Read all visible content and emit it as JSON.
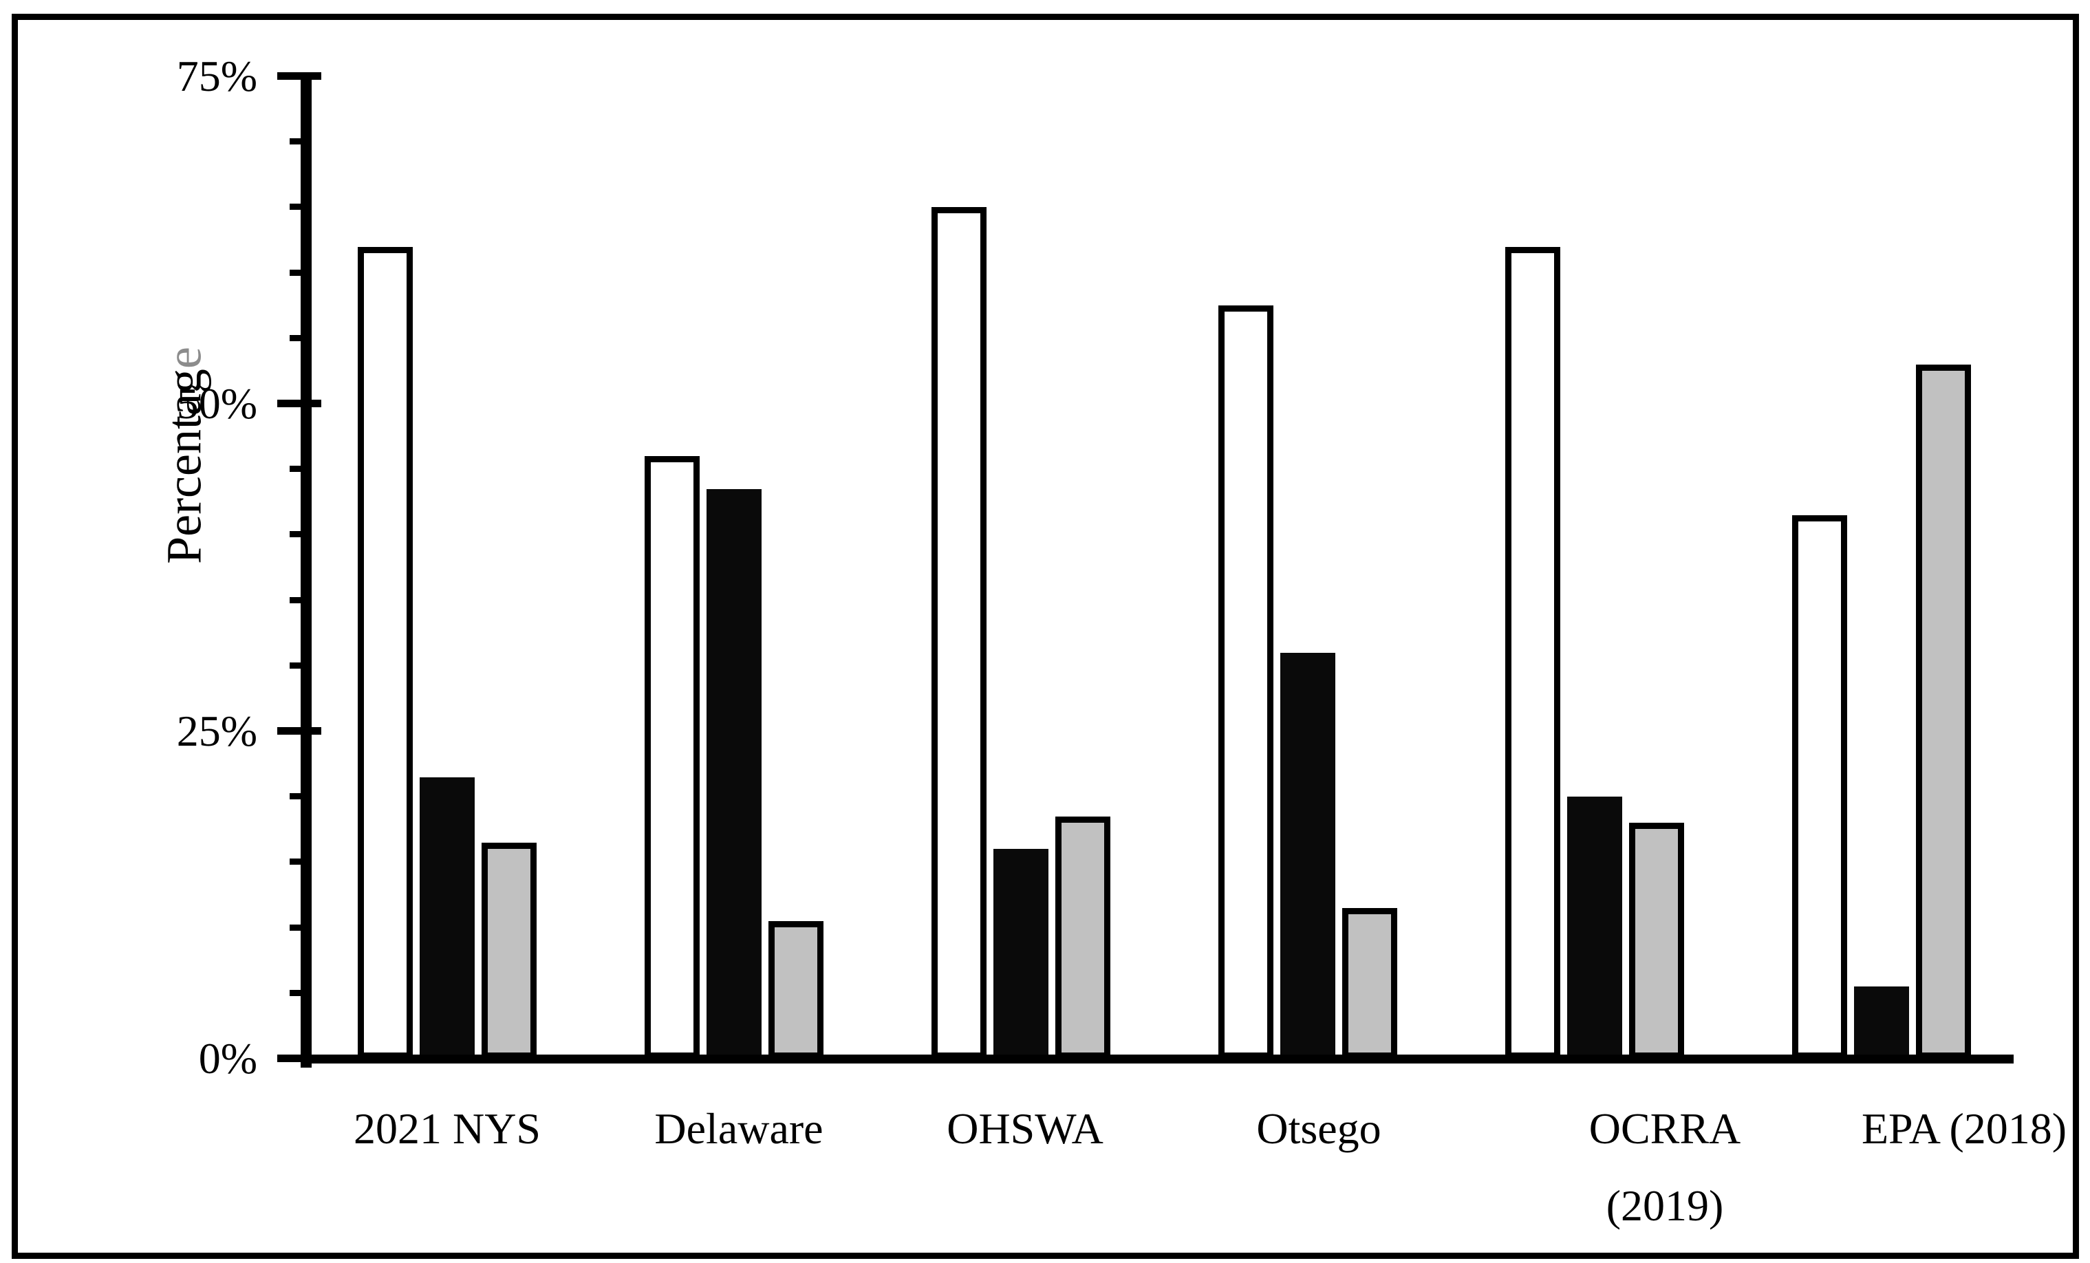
{
  "figure": {
    "background_color": "#ffffff",
    "frame_color": "#000000",
    "text_color": "#000000"
  },
  "chart_data": {
    "type": "bar",
    "title": "",
    "xlabel": "",
    "ylabel": "Percentage",
    "ylabel_main": "Percentag",
    "ylabel_tail": "e",
    "ylabel_tail_color": "#8c8c8c",
    "ylim": [
      0,
      75
    ],
    "y_major_ticks": [
      {
        "value": 0,
        "label": "0%"
      },
      {
        "value": 25,
        "label": "25%"
      },
      {
        "value": 50,
        "label": "50%"
      },
      {
        "value": 75,
        "label": "75%"
      }
    ],
    "y_minor_tick_step": 5,
    "grid": false,
    "legend": "none",
    "categories": [
      {
        "lines": [
          "2021 NYS"
        ]
      },
      {
        "lines": [
          "Delaware"
        ]
      },
      {
        "lines": [
          "OHSWA"
        ]
      },
      {
        "lines": [
          "Otsego"
        ]
      },
      {
        "lines": [
          "OCRRA",
          "(2019)"
        ]
      },
      {
        "lines": [
          "EPA (2018)"
        ]
      }
    ],
    "series": [
      {
        "name": "white-bars",
        "fill": "#ffffff",
        "outline": "#000000",
        "values": [
          62,
          46,
          65,
          57.5,
          62,
          41.5
        ]
      },
      {
        "name": "black-bars",
        "fill": "#0a0a0a",
        "outline": "#000000",
        "values": [
          21.5,
          43.5,
          16,
          31,
          20,
          5.5
        ]
      },
      {
        "name": "gray-bars",
        "fill": "#c1c1c1",
        "outline": "#000000",
        "values": [
          16.5,
          10.5,
          18.5,
          11.5,
          18,
          53
        ]
      }
    ]
  }
}
